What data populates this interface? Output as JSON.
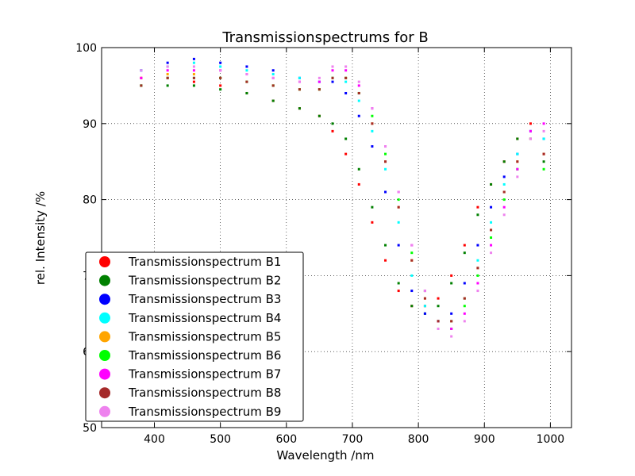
{
  "chart_data": {
    "type": "scatter",
    "title": "Transmissionspectrums for B",
    "xlabel": "Wavelength  /nm",
    "ylabel": "rel. Intensity  /%",
    "xlim": [
      320,
      1032
    ],
    "ylim": [
      50,
      100
    ],
    "xticks": [
      400,
      500,
      600,
      700,
      800,
      900,
      1000
    ],
    "yticks": [
      50,
      60,
      70,
      80,
      90,
      100
    ],
    "grid": true,
    "legend_position": "lower-left",
    "series": [
      {
        "name": "Transmissionspectrum B1",
        "color": "#ff0000",
        "x": [
          380,
          420,
          460,
          500,
          540,
          580,
          620,
          650,
          670,
          690,
          710,
          730,
          750,
          770,
          790,
          810,
          830,
          850,
          870,
          890,
          910,
          930,
          950,
          970,
          990
        ],
        "y": [
          96,
          96,
          95.5,
          95,
          94,
          93,
          92,
          91,
          89,
          86,
          82,
          77,
          72,
          68,
          66,
          66,
          67,
          70,
          74,
          79,
          82,
          85,
          88,
          90,
          86
        ]
      },
      {
        "name": "Transmissionspectrum B2",
        "color": "#008000",
        "x": [
          380,
          420,
          460,
          500,
          540,
          580,
          620,
          650,
          670,
          690,
          710,
          730,
          750,
          770,
          790,
          810,
          830,
          850,
          870,
          890,
          910,
          930,
          950,
          970,
          990
        ],
        "y": [
          95,
          95,
          95,
          94.5,
          94,
          93,
          92,
          91,
          90,
          88,
          84,
          79,
          74,
          69,
          66,
          65,
          66,
          69,
          73,
          78,
          82,
          85,
          88,
          88,
          85
        ]
      },
      {
        "name": "Transmissionspectrum B3",
        "color": "#0000ff",
        "x": [
          380,
          420,
          460,
          500,
          540,
          580,
          620,
          650,
          670,
          690,
          710,
          730,
          750,
          770,
          790,
          810,
          830,
          850,
          870,
          890,
          910,
          930,
          950,
          970,
          990
        ],
        "y": [
          97,
          98,
          98.5,
          98,
          97.5,
          97,
          96,
          95.5,
          95.5,
          94,
          91,
          87,
          81,
          74,
          68,
          65,
          64,
          65,
          69,
          74,
          79,
          83,
          86,
          89,
          88
        ]
      },
      {
        "name": "Transmissionspectrum B4",
        "color": "#00ffff",
        "x": [
          380,
          420,
          460,
          500,
          540,
          580,
          620,
          650,
          670,
          690,
          710,
          730,
          750,
          770,
          790,
          810,
          830,
          850,
          870,
          890,
          910,
          930,
          950,
          970,
          990
        ],
        "y": [
          97,
          97.5,
          98,
          97.5,
          97,
          96.5,
          96,
          95.5,
          96,
          95.5,
          93,
          89,
          84,
          77,
          70,
          66,
          64,
          64,
          67,
          72,
          77,
          82,
          86,
          89,
          88
        ]
      },
      {
        "name": "Transmissionspectrum B5",
        "color": "#ffa500",
        "x": [
          380,
          420,
          460,
          500,
          540,
          580,
          620,
          650,
          670,
          690,
          710,
          730,
          750,
          770,
          790,
          810,
          830,
          850,
          870,
          890,
          910,
          930,
          950,
          970,
          990
        ],
        "y": [
          96,
          96.5,
          96.5,
          96,
          95.5,
          95,
          94.5,
          94.5,
          96,
          96,
          94,
          90,
          85,
          79,
          72,
          67,
          64,
          64,
          67,
          71,
          76,
          81,
          85,
          88,
          86
        ]
      },
      {
        "name": "Transmissionspectrum B6",
        "color": "#00ff00",
        "x": [
          380,
          420,
          460,
          500,
          540,
          580,
          620,
          650,
          670,
          690,
          710,
          730,
          750,
          770,
          790,
          810,
          830,
          850,
          870,
          890,
          910,
          930,
          950,
          970,
          990
        ],
        "y": [
          95,
          96,
          96,
          96,
          95.5,
          95,
          94.5,
          94.5,
          96,
          96,
          94,
          91,
          86,
          80,
          73,
          68,
          64,
          63,
          66,
          70,
          75,
          80,
          84,
          88,
          84
        ]
      },
      {
        "name": "Transmissionspectrum B7",
        "color": "#ff00ff",
        "x": [
          380,
          420,
          460,
          500,
          540,
          580,
          620,
          650,
          670,
          690,
          710,
          730,
          750,
          770,
          790,
          810,
          830,
          850,
          870,
          890,
          910,
          930,
          950,
          970,
          990
        ],
        "y": [
          96,
          97,
          97,
          97,
          96.5,
          96,
          95.5,
          95.5,
          97,
          97,
          95,
          92,
          87,
          81,
          74,
          68,
          64,
          63,
          65,
          69,
          74,
          79,
          84,
          89,
          90
        ]
      },
      {
        "name": "Transmissionspectrum B8",
        "color": "#a52a2a",
        "x": [
          380,
          420,
          460,
          500,
          540,
          580,
          620,
          650,
          670,
          690,
          710,
          730,
          750,
          770,
          790,
          810,
          830,
          850,
          870,
          890,
          910,
          930,
          950,
          970,
          990
        ],
        "y": [
          95,
          96,
          96,
          96,
          95.5,
          95,
          94.5,
          94.5,
          96,
          96,
          94,
          90,
          85,
          79,
          72,
          67,
          64,
          64,
          67,
          71,
          76,
          81,
          85,
          88,
          86
        ]
      },
      {
        "name": "Transmissionspectrum B9",
        "color": "#ee82ee",
        "x": [
          380,
          420,
          460,
          500,
          540,
          580,
          620,
          650,
          670,
          690,
          710,
          730,
          750,
          770,
          790,
          810,
          830,
          850,
          870,
          890,
          910,
          930,
          950,
          970,
          990
        ],
        "y": [
          97,
          97.5,
          97.5,
          97,
          96.5,
          96,
          95.5,
          96,
          97.5,
          97.5,
          95.5,
          92,
          87,
          81,
          74,
          68,
          63,
          62,
          64,
          68,
          73,
          78,
          83,
          88,
          89
        ]
      }
    ]
  }
}
